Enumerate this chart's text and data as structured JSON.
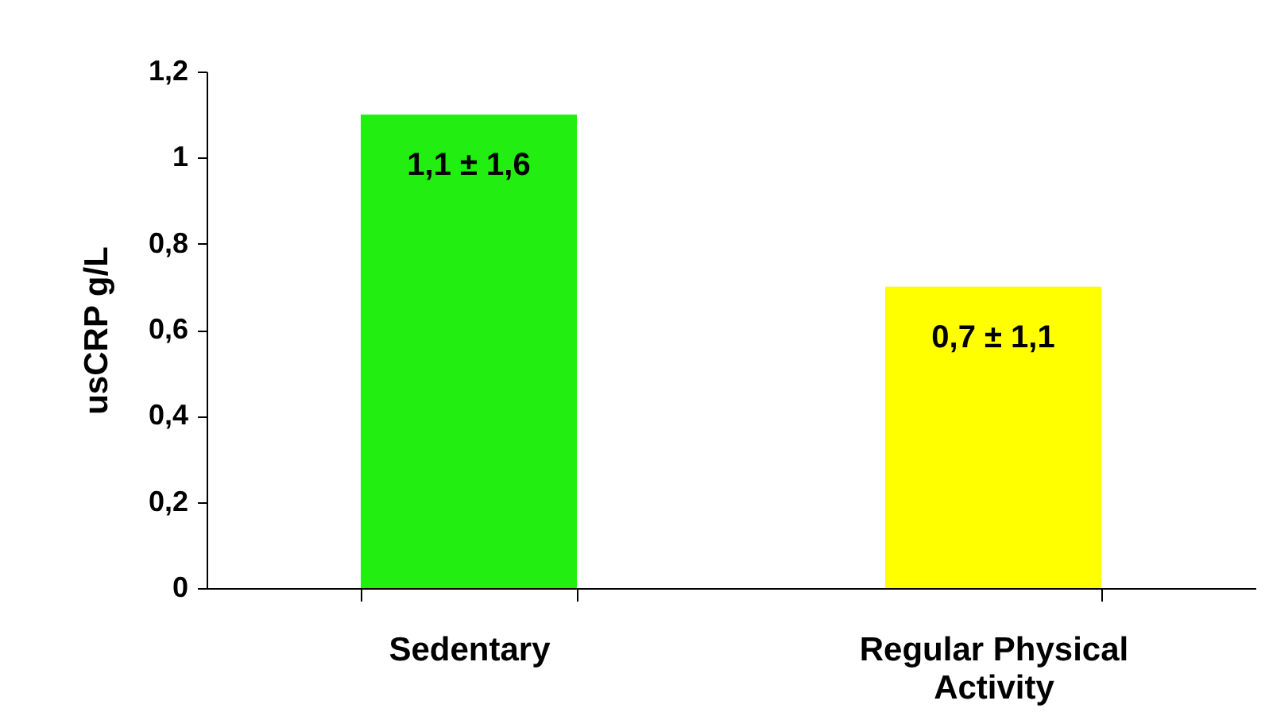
{
  "chart_data": {
    "type": "bar",
    "ylabel": "usCRP g/L",
    "categories": [
      "Sedentary",
      "Regular Physical Activity"
    ],
    "values": [
      1.1,
      0.7
    ],
    "colors": [
      "#22ee11",
      "#ffff00"
    ],
    "value_labels": [
      "1,1 ± 1,6",
      "0,7 ± 1,1"
    ],
    "ylim": [
      0,
      1.2
    ],
    "yticks": [
      0,
      {
        "value": 0.2,
        "label": "0,2"
      },
      {
        "value": 0.4,
        "label": "0,4"
      },
      {
        "value": 0.6,
        "label": "0,6"
      },
      {
        "value": 0.8,
        "label": "0,8"
      },
      1,
      {
        "value": 1.2,
        "label": "1,2"
      }
    ],
    "grid": false
  }
}
